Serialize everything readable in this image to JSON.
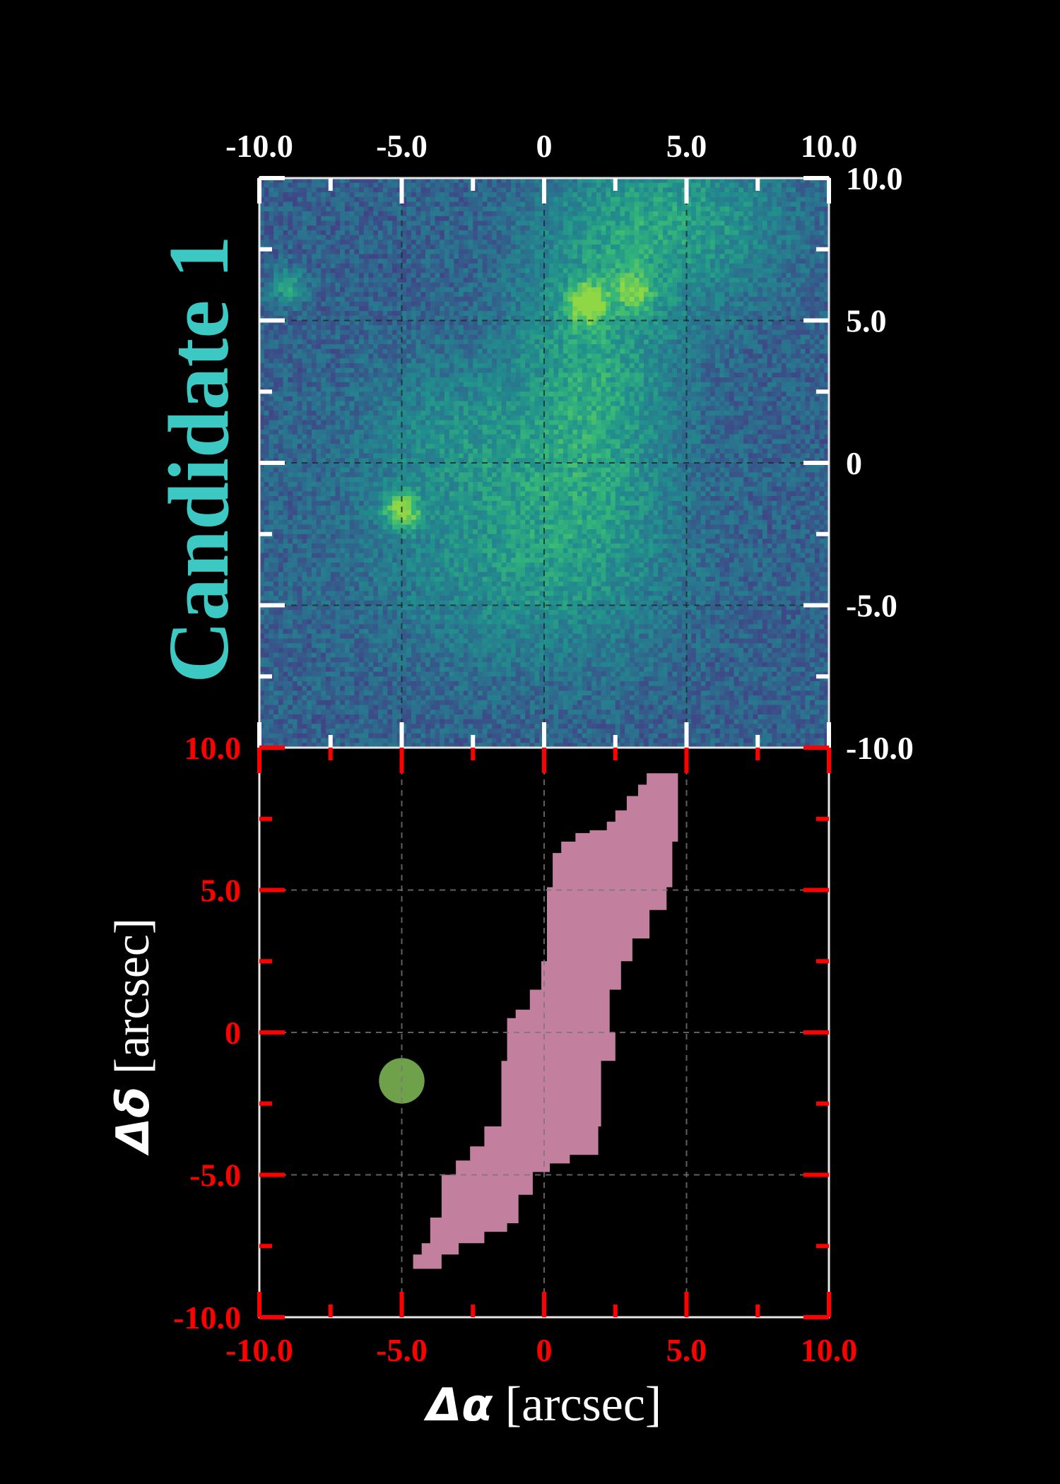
{
  "figure": {
    "candidate_label": "Candidate 1",
    "x_axis_label": {
      "symbol": "Δα",
      "unit": " [arcsec]"
    },
    "y_axis_label": {
      "symbol": "Δδ",
      "unit": " [arcsec]"
    }
  },
  "chart_data": [
    {
      "type": "heatmap",
      "panel": "top",
      "description_visible": "noisy sky cutout, viridis-like colormap",
      "xlim": [
        -10,
        10
      ],
      "ylim": [
        -10,
        10
      ],
      "x_ticks": [
        "-10.0",
        "-5.0",
        "0",
        "5.0",
        "10.0"
      ],
      "y_ticks": [
        "10.0",
        "5.0",
        "0",
        "-5.0",
        "-10.0"
      ],
      "x_tick_values": [
        -10,
        -5,
        0,
        5,
        10
      ],
      "y_tick_values": [
        10,
        5,
        0,
        -5,
        -10
      ],
      "grid": true,
      "tick_color": "#ffffff",
      "label_color": "#ffffff",
      "colormap": [
        "#3b0f5e",
        "#433e85",
        "#2c6e8e",
        "#21908d",
        "#35b779",
        "#8fd744"
      ],
      "bright_sources": [
        {
          "x": -5.0,
          "y": -1.7,
          "peak": 0.95
        },
        {
          "x": 1.5,
          "y": 5.6,
          "peak": 0.9
        },
        {
          "x": 3.2,
          "y": 6.0,
          "peak": 0.6
        },
        {
          "x": -9.0,
          "y": 6.2,
          "peak": 0.55
        }
      ],
      "diffuse_emission": [
        {
          "x": 1.8,
          "y": 3.0,
          "sx": 2.0,
          "sy": 4.5,
          "amp": 0.35
        },
        {
          "x": 5.0,
          "y": 8.5,
          "sx": 2.5,
          "sy": 2.0,
          "amp": 0.3
        },
        {
          "x": -1.0,
          "y": -3.5,
          "sx": 3.5,
          "sy": 2.5,
          "amp": 0.25
        },
        {
          "x": -3.0,
          "y": 1.0,
          "sx": 2.5,
          "sy": 2.0,
          "amp": 0.2
        }
      ]
    },
    {
      "type": "area",
      "panel": "bottom",
      "xlim": [
        -10,
        10
      ],
      "ylim": [
        -10,
        10
      ],
      "x_ticks": [
        "-10.0",
        "-5.0",
        "0",
        "5.0",
        "10.0"
      ],
      "y_ticks": [
        "10.0",
        "5.0",
        "0",
        "-5.0",
        "-10.0"
      ],
      "x_tick_values": [
        -10,
        -5,
        0,
        5,
        10
      ],
      "y_tick_values": [
        10,
        5,
        0,
        -5,
        -10
      ],
      "grid": true,
      "tick_color": "#ff0000",
      "label_color": "#ff0000",
      "regions": [
        {
          "color": "#c27f9e",
          "boundary": [
            [
              3.6,
              9.1
            ],
            [
              4.7,
              9.1
            ],
            [
              4.7,
              6.7
            ],
            [
              4.5,
              6.7
            ],
            [
              4.5,
              5.1
            ],
            [
              4.3,
              5.1
            ],
            [
              4.3,
              4.3
            ],
            [
              3.7,
              4.3
            ],
            [
              3.7,
              3.3
            ],
            [
              3.1,
              3.3
            ],
            [
              3.1,
              2.5
            ],
            [
              2.7,
              2.5
            ],
            [
              2.7,
              1.5
            ],
            [
              2.3,
              1.5
            ],
            [
              2.3,
              0.0
            ],
            [
              2.5,
              0.0
            ],
            [
              2.5,
              -1.0
            ],
            [
              2.0,
              -1.0
            ],
            [
              2.0,
              -3.3
            ],
            [
              1.9,
              -3.3
            ],
            [
              1.9,
              -4.3
            ],
            [
              0.9,
              -4.3
            ],
            [
              0.9,
              -4.6
            ],
            [
              0.2,
              -4.6
            ],
            [
              0.2,
              -4.9
            ],
            [
              -0.4,
              -4.9
            ],
            [
              -0.4,
              -5.7
            ],
            [
              -0.9,
              -5.7
            ],
            [
              -0.9,
              -6.7
            ],
            [
              -1.3,
              -6.7
            ],
            [
              -1.3,
              -7.0
            ],
            [
              -2.1,
              -7.0
            ],
            [
              -2.1,
              -7.4
            ],
            [
              -3.0,
              -7.4
            ],
            [
              -3.0,
              -7.8
            ],
            [
              -3.6,
              -7.8
            ],
            [
              -3.6,
              -8.3
            ],
            [
              -4.6,
              -8.3
            ],
            [
              -4.6,
              -7.8
            ],
            [
              -4.3,
              -7.8
            ],
            [
              -4.3,
              -7.4
            ],
            [
              -4.0,
              -7.4
            ],
            [
              -4.0,
              -6.5
            ],
            [
              -3.6,
              -6.5
            ],
            [
              -3.6,
              -5.0
            ],
            [
              -3.1,
              -5.0
            ],
            [
              -3.1,
              -4.5
            ],
            [
              -2.6,
              -4.5
            ],
            [
              -2.6,
              -4.0
            ],
            [
              -2.1,
              -4.0
            ],
            [
              -2.1,
              -3.3
            ],
            [
              -1.5,
              -3.3
            ],
            [
              -1.5,
              -1.0
            ],
            [
              -1.3,
              -1.0
            ],
            [
              -1.3,
              0.5
            ],
            [
              -1.0,
              0.5
            ],
            [
              -1.0,
              0.8
            ],
            [
              -0.5,
              0.8
            ],
            [
              -0.5,
              1.5
            ],
            [
              -0.1,
              1.5
            ],
            [
              -0.1,
              2.5
            ],
            [
              0.1,
              2.5
            ],
            [
              0.1,
              4.3
            ],
            [
              0.1,
              5.1
            ],
            [
              0.3,
              5.1
            ],
            [
              0.3,
              6.3
            ],
            [
              0.6,
              6.3
            ],
            [
              0.6,
              6.7
            ],
            [
              1.1,
              6.7
            ],
            [
              1.1,
              7.0
            ],
            [
              1.6,
              7.0
            ],
            [
              1.6,
              7.1
            ],
            [
              2.2,
              7.1
            ],
            [
              2.2,
              7.4
            ],
            [
              2.5,
              7.4
            ],
            [
              2.5,
              7.8
            ],
            [
              2.9,
              7.8
            ],
            [
              2.9,
              8.3
            ],
            [
              3.3,
              8.3
            ],
            [
              3.3,
              8.7
            ],
            [
              3.6,
              8.7
            ]
          ]
        },
        {
          "color": "#6ea14a",
          "shape": "circle",
          "center": [
            -5.0,
            -1.7
          ],
          "radius": 0.8
        }
      ]
    }
  ]
}
